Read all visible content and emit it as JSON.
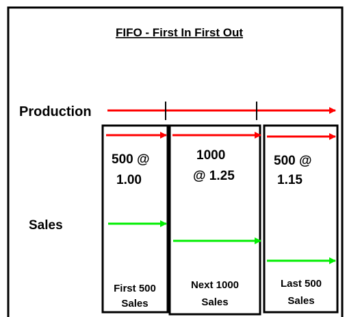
{
  "title": "FIFO - First In First Out",
  "production_label": "Production",
  "sales_label": "Sales",
  "boxes": [
    {
      "lot": [
        "500 @",
        "1.00"
      ],
      "label": [
        "First 500",
        "Sales"
      ]
    },
    {
      "lot": [
        "1000",
        "@ 1.25"
      ],
      "label": [
        "Next 1000",
        "Sales"
      ]
    },
    {
      "lot": [
        "500 @",
        "1.15"
      ],
      "label": [
        "Last 500",
        "Sales"
      ]
    }
  ]
}
